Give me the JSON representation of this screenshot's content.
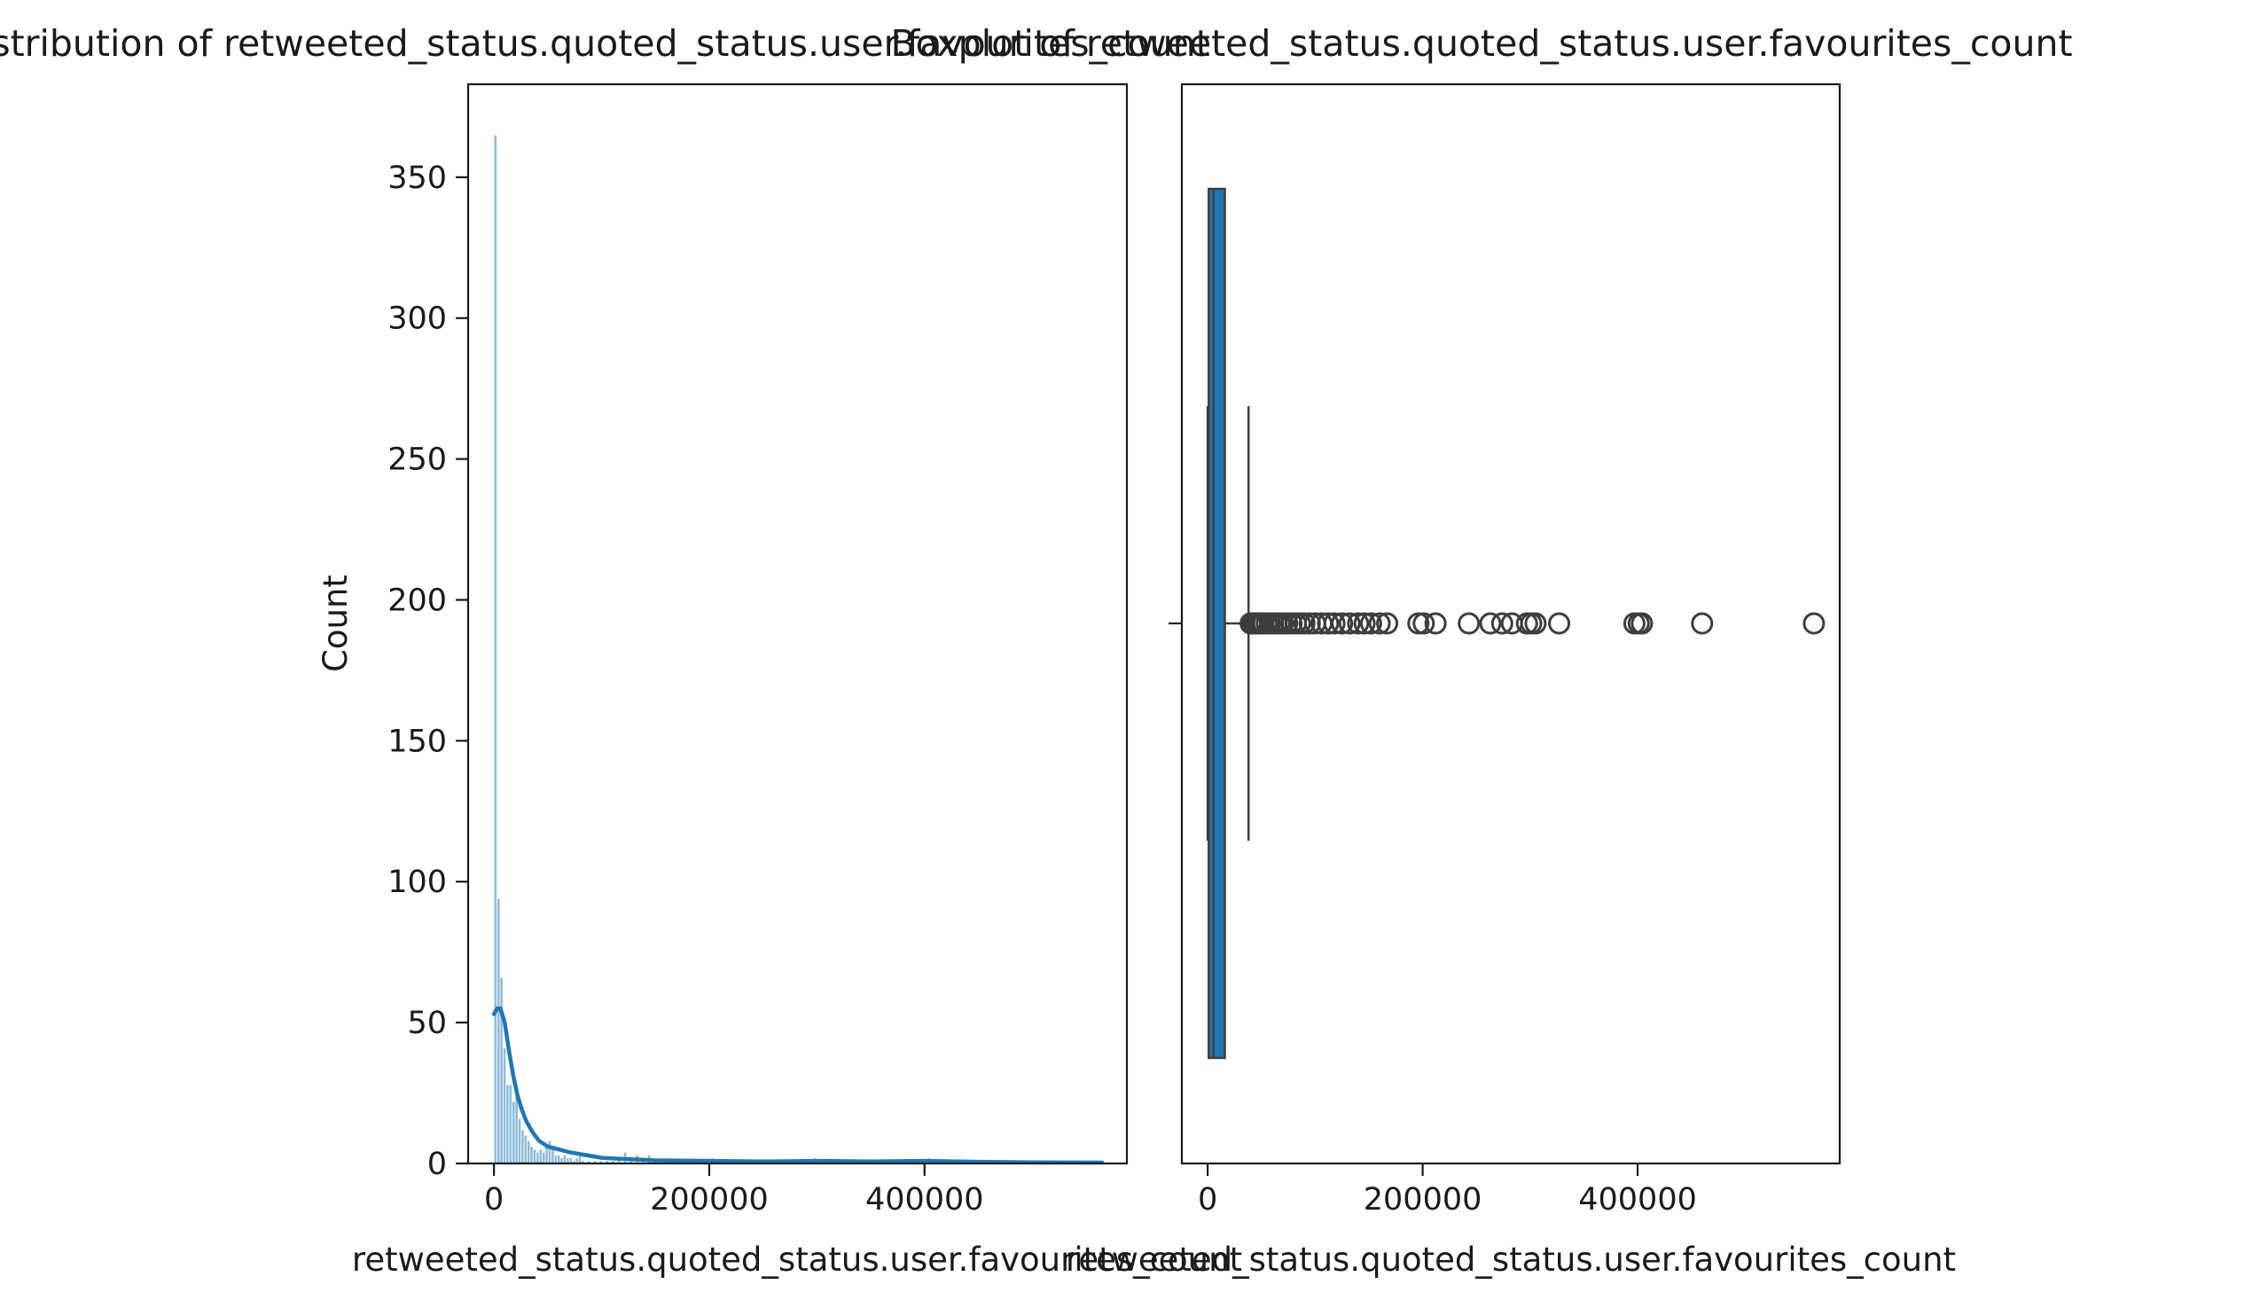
{
  "chart_data": [
    {
      "type": "histogram",
      "title": "Distribution of retweeted_status.quoted_status.user.favourites_count",
      "xlabel": "retweeted_status.quoted_status.user.favourites_count",
      "ylabel": "Count",
      "xlim": [
        -24000,
        588000
      ],
      "ylim": [
        0,
        383
      ],
      "xticks": [
        0,
        200000,
        400000
      ],
      "xtick_labels": [
        "0",
        "200000",
        "400000"
      ],
      "yticks": [
        0,
        50,
        100,
        150,
        200,
        250,
        300,
        350
      ],
      "ytick_labels": [
        "0",
        "50",
        "100",
        "150",
        "200",
        "250",
        "300",
        "350"
      ],
      "bin_width": 2800,
      "bins": [
        {
          "x": 0,
          "count": 365
        },
        {
          "x": 2800,
          "count": 94
        },
        {
          "x": 5600,
          "count": 66
        },
        {
          "x": 8400,
          "count": 41
        },
        {
          "x": 11200,
          "count": 28
        },
        {
          "x": 14000,
          "count": 28
        },
        {
          "x": 16800,
          "count": 22
        },
        {
          "x": 19600,
          "count": 25
        },
        {
          "x": 22400,
          "count": 16
        },
        {
          "x": 25200,
          "count": 12
        },
        {
          "x": 28000,
          "count": 10
        },
        {
          "x": 30800,
          "count": 8
        },
        {
          "x": 33600,
          "count": 6
        },
        {
          "x": 36400,
          "count": 5
        },
        {
          "x": 39200,
          "count": 4
        },
        {
          "x": 42000,
          "count": 5
        },
        {
          "x": 44800,
          "count": 4
        },
        {
          "x": 47600,
          "count": 6
        },
        {
          "x": 50400,
          "count": 8
        },
        {
          "x": 53200,
          "count": 5
        },
        {
          "x": 56000,
          "count": 3
        },
        {
          "x": 58800,
          "count": 3
        },
        {
          "x": 61600,
          "count": 2
        },
        {
          "x": 64400,
          "count": 3
        },
        {
          "x": 67200,
          "count": 2
        },
        {
          "x": 70000,
          "count": 2
        },
        {
          "x": 72800,
          "count": 1
        },
        {
          "x": 75600,
          "count": 2
        },
        {
          "x": 78400,
          "count": 4
        },
        {
          "x": 81200,
          "count": 1
        },
        {
          "x": 86800,
          "count": 1
        },
        {
          "x": 92400,
          "count": 1
        },
        {
          "x": 98000,
          "count": 1
        },
        {
          "x": 103600,
          "count": 1
        },
        {
          "x": 109200,
          "count": 1
        },
        {
          "x": 114800,
          "count": 2
        },
        {
          "x": 120400,
          "count": 4
        },
        {
          "x": 126000,
          "count": 1
        },
        {
          "x": 131600,
          "count": 3
        },
        {
          "x": 137200,
          "count": 2
        },
        {
          "x": 142800,
          "count": 3
        },
        {
          "x": 148400,
          "count": 1
        },
        {
          "x": 156800,
          "count": 1
        },
        {
          "x": 162400,
          "count": 1
        },
        {
          "x": 196000,
          "count": 1
        },
        {
          "x": 201600,
          "count": 2
        },
        {
          "x": 212800,
          "count": 1
        },
        {
          "x": 243600,
          "count": 1
        },
        {
          "x": 263200,
          "count": 1
        },
        {
          "x": 274400,
          "count": 1
        },
        {
          "x": 282800,
          "count": 1
        },
        {
          "x": 296800,
          "count": 2
        },
        {
          "x": 305200,
          "count": 1
        },
        {
          "x": 327600,
          "count": 1
        },
        {
          "x": 397600,
          "count": 1
        },
        {
          "x": 403200,
          "count": 2
        },
        {
          "x": 460000,
          "count": 1
        },
        {
          "x": 564000,
          "count": 1
        }
      ],
      "kde": [
        [
          0,
          53
        ],
        [
          3000,
          55
        ],
        [
          6000,
          55
        ],
        [
          10000,
          50
        ],
        [
          14000,
          40
        ],
        [
          18000,
          31
        ],
        [
          22000,
          24
        ],
        [
          26000,
          19
        ],
        [
          30000,
          15
        ],
        [
          36000,
          11
        ],
        [
          42000,
          8
        ],
        [
          50000,
          6
        ],
        [
          60000,
          5
        ],
        [
          70000,
          4
        ],
        [
          85000,
          3
        ],
        [
          100000,
          2
        ],
        [
          120000,
          1.6
        ],
        [
          150000,
          1.1
        ],
        [
          200000,
          0.9
        ],
        [
          250000,
          0.7
        ],
        [
          300000,
          0.9
        ],
        [
          350000,
          0.7
        ],
        [
          400000,
          0.9
        ],
        [
          450000,
          0.6
        ],
        [
          500000,
          0.4
        ],
        [
          565000,
          0.3
        ]
      ],
      "colors": {
        "bars": "#1f77b4",
        "kde": "#1f77b4"
      }
    },
    {
      "type": "boxplot",
      "title": "Boxplot of retweeted_status.quoted_status.user.favourites_count",
      "xlabel": "retweeted_status.quoted_status.user.favourites_count",
      "xlim": [
        -24000,
        588000
      ],
      "xticks": [
        0,
        200000,
        400000
      ],
      "xtick_labels": [
        "0",
        "200000",
        "400000"
      ],
      "box": {
        "min": 0,
        "q1": 1000,
        "median": 5500,
        "q3": 16000,
        "whisker_low": 0,
        "whisker_high": 38000
      },
      "outliers": [
        40000,
        42000,
        44000,
        46000,
        48000,
        50000,
        52000,
        55000,
        58000,
        61000,
        64000,
        67000,
        70000,
        74000,
        78000,
        82000,
        86000,
        90000,
        95000,
        100000,
        106000,
        112000,
        118000,
        125000,
        132000,
        140000,
        146000,
        152000,
        160000,
        167000,
        196000,
        201000,
        212000,
        243000,
        263000,
        274000,
        283000,
        297000,
        301000,
        305000,
        327000,
        397000,
        401000,
        404000,
        460000,
        564000
      ],
      "colors": {
        "box": "#1f77b4",
        "lines": "#3d3d3d"
      }
    }
  ]
}
